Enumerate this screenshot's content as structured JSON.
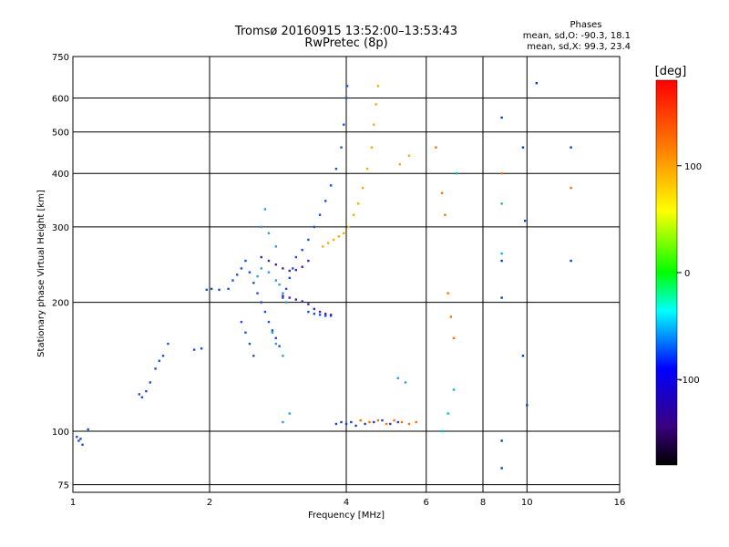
{
  "chart_data": {
    "type": "scatter",
    "title": "Tromsø 20160915 13:52:00–13:53:43",
    "subtitle": "RwPretec (8p)",
    "xlabel": "Frequency [MHz]",
    "ylabel": "Stationary phase Virtual Height [km]",
    "x_scale": "log",
    "y_scale": "log",
    "xlim": [
      1,
      16
    ],
    "ylim": [
      72,
      750
    ],
    "x_ticks": [
      1,
      2,
      4,
      6,
      8,
      10,
      16
    ],
    "y_ticks": [
      75,
      100,
      200,
      300,
      400,
      500,
      600,
      750
    ],
    "grid": true,
    "phases_box": {
      "title": "Phases",
      "line_o": "mean, sd,O:  -90.3,  18.1",
      "line_x": "mean, sd,X:   99.3,  23.4"
    },
    "colorbar": {
      "label": "[deg]",
      "range": [
        -180,
        180
      ],
      "ticks": [
        100,
        0,
        -100
      ],
      "colors": [
        "#000000",
        "#3a007f",
        "#0000ff",
        "#00ffff",
        "#00ff00",
        "#ffff00",
        "#ff8000",
        "#ff0000"
      ]
    },
    "series": [
      {
        "color": "#1a4fe0",
        "points": [
          [
            1.02,
            97
          ],
          [
            1.03,
            95
          ],
          [
            1.04,
            96
          ],
          [
            1.05,
            93
          ],
          [
            1.08,
            101
          ],
          [
            1.4,
            122
          ],
          [
            1.42,
            120
          ],
          [
            1.45,
            124
          ],
          [
            1.48,
            130
          ],
          [
            1.52,
            140
          ],
          [
            1.55,
            146
          ],
          [
            1.58,
            150
          ],
          [
            1.62,
            160
          ],
          [
            1.85,
            155
          ],
          [
            1.92,
            156
          ],
          [
            1.97,
            214
          ],
          [
            2.02,
            215
          ],
          [
            2.1,
            214
          ],
          [
            2.2,
            215
          ],
          [
            2.25,
            225
          ],
          [
            2.3,
            232
          ],
          [
            2.35,
            240
          ],
          [
            2.4,
            250
          ],
          [
            2.45,
            235
          ],
          [
            2.5,
            222
          ],
          [
            2.55,
            210
          ],
          [
            2.6,
            200
          ],
          [
            2.65,
            190
          ],
          [
            2.7,
            180
          ],
          [
            2.75,
            172
          ],
          [
            2.8,
            165
          ],
          [
            2.85,
            158
          ],
          [
            2.9,
            205
          ],
          [
            2.95,
            215
          ],
          [
            3.0,
            228
          ],
          [
            3.05,
            240
          ],
          [
            3.1,
            255
          ],
          [
            3.2,
            265
          ],
          [
            3.3,
            280
          ],
          [
            3.4,
            300
          ],
          [
            3.5,
            320
          ],
          [
            3.6,
            345
          ],
          [
            3.7,
            375
          ],
          [
            3.8,
            410
          ],
          [
            3.9,
            460
          ],
          [
            3.95,
            520
          ],
          [
            4.0,
            600
          ],
          [
            4.02,
            640
          ],
          [
            3.3,
            190
          ],
          [
            3.4,
            188
          ],
          [
            3.5,
            187
          ],
          [
            3.6,
            186
          ],
          [
            3.7,
            186
          ],
          [
            2.35,
            180
          ],
          [
            2.4,
            170
          ],
          [
            2.45,
            160
          ],
          [
            2.5,
            150
          ]
        ]
      },
      {
        "color": "#4a20b0",
        "points": [
          [
            2.6,
            255
          ],
          [
            2.7,
            250
          ],
          [
            2.8,
            245
          ],
          [
            2.9,
            240
          ],
          [
            3.0,
            237
          ],
          [
            3.1,
            238
          ],
          [
            3.2,
            242
          ],
          [
            3.3,
            250
          ],
          [
            2.9,
            207
          ],
          [
            3.0,
            205
          ],
          [
            3.1,
            203
          ],
          [
            3.2,
            201
          ],
          [
            3.3,
            198
          ],
          [
            3.4,
            193
          ],
          [
            3.5,
            190
          ],
          [
            3.6,
            188
          ],
          [
            3.7,
            187
          ]
        ]
      },
      {
        "color": "#2a9fe0",
        "points": [
          [
            2.55,
            230
          ],
          [
            2.6,
            240
          ],
          [
            2.7,
            235
          ],
          [
            2.8,
            225
          ],
          [
            2.85,
            220
          ],
          [
            2.9,
            210
          ],
          [
            2.95,
            200
          ],
          [
            2.75,
            170
          ],
          [
            2.8,
            160
          ],
          [
            2.9,
            150
          ],
          [
            2.65,
            330
          ],
          [
            2.7,
            290
          ],
          [
            2.8,
            270
          ],
          [
            2.6,
            300
          ],
          [
            2.9,
            105
          ],
          [
            3.0,
            110
          ],
          [
            5.2,
            133
          ],
          [
            5.4,
            130
          ]
        ]
      },
      {
        "color": "#f0b000",
        "points": [
          [
            3.55,
            270
          ],
          [
            3.65,
            275
          ],
          [
            3.75,
            280
          ],
          [
            3.85,
            285
          ],
          [
            3.95,
            290
          ],
          [
            4.05,
            300
          ],
          [
            4.15,
            320
          ],
          [
            4.25,
            340
          ],
          [
            4.35,
            370
          ],
          [
            4.45,
            410
          ],
          [
            4.55,
            460
          ],
          [
            4.6,
            520
          ],
          [
            4.65,
            580
          ],
          [
            4.7,
            640
          ],
          [
            5.25,
            420
          ],
          [
            5.5,
            440
          ]
        ]
      },
      {
        "color": "#ff7000",
        "points": [
          [
            4.3,
            106
          ],
          [
            4.5,
            105
          ],
          [
            4.7,
            106
          ],
          [
            4.9,
            104
          ],
          [
            5.1,
            106
          ],
          [
            5.3,
            105
          ],
          [
            5.5,
            104
          ],
          [
            5.7,
            105
          ],
          [
            6.3,
            460
          ],
          [
            6.5,
            360
          ],
          [
            6.6,
            320
          ],
          [
            6.7,
            210
          ],
          [
            6.8,
            185
          ],
          [
            6.9,
            165
          ],
          [
            8.8,
            400
          ],
          [
            12.5,
            370
          ]
        ]
      },
      {
        "color": "#1a3fd0",
        "points": [
          [
            3.8,
            104
          ],
          [
            3.9,
            105
          ],
          [
            4.0,
            104
          ],
          [
            4.1,
            105
          ],
          [
            4.2,
            103
          ],
          [
            4.4,
            104
          ],
          [
            4.6,
            105
          ],
          [
            4.8,
            106
          ],
          [
            5.0,
            104
          ],
          [
            5.2,
            105
          ]
        ]
      },
      {
        "color": "#0040c0",
        "points": [
          [
            8.8,
            540
          ],
          [
            8.8,
            250
          ],
          [
            8.8,
            205
          ],
          [
            8.8,
            95
          ],
          [
            8.8,
            82
          ],
          [
            10.5,
            650
          ],
          [
            9.9,
            310
          ],
          [
            9.8,
            460
          ],
          [
            9.8,
            150
          ],
          [
            10.0,
            115
          ],
          [
            12.5,
            460
          ],
          [
            12.5,
            250
          ]
        ]
      },
      {
        "color": "#00c0c0",
        "points": [
          [
            8.8,
            340
          ],
          [
            8.8,
            260
          ],
          [
            7.0,
            400
          ],
          [
            6.9,
            125
          ],
          [
            6.7,
            110
          ],
          [
            6.5,
            100
          ]
        ]
      }
    ]
  }
}
